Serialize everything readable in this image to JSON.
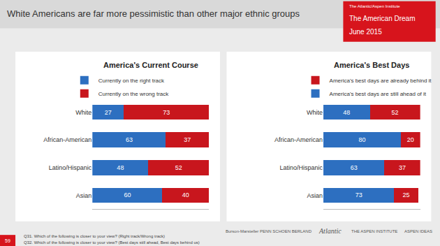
{
  "header": {
    "title": "White Americans are far more pessimistic than other major ethnic groups",
    "badge": [
      "The Atlantic/Aspen Institute",
      "The American Dream",
      "June 2015"
    ]
  },
  "chart_data": [
    {
      "type": "bar",
      "title": "America's Current Course",
      "orientation": "horizontal",
      "stacked": true,
      "data_labels": true,
      "tick_labels": "y",
      "legend": "top",
      "categories": [
        "White",
        "African-American",
        "Latino/Hispanic",
        "Asian"
      ],
      "series": [
        {
          "name": "Currently on the right track",
          "color": "#2d6fc0",
          "values": [
            27,
            63,
            48,
            60
          ]
        },
        {
          "name": "Currently on the wrong track",
          "color": "#c8161d",
          "values": [
            73,
            37,
            52,
            40
          ]
        }
      ],
      "xlim": [
        0,
        100
      ],
      "xticks": []
    },
    {
      "type": "bar",
      "title": "America's Best Days",
      "orientation": "horizontal",
      "stacked": true,
      "data_labels": true,
      "tick_labels": "y",
      "legend": "top",
      "categories": [
        "White",
        "African-American",
        "Latino/Hispanic",
        "Asian"
      ],
      "series": [
        {
          "name": "America's best days are still ahead of it",
          "color": "#2d6fc0",
          "values": [
            48,
            80,
            63,
            73
          ]
        },
        {
          "name": "America's best days are already behind it",
          "color": "#c8161d",
          "values": [
            52,
            20,
            37,
            25
          ]
        }
      ],
      "xlim": [
        0,
        100
      ],
      "xticks": []
    }
  ],
  "footer": {
    "page_number": "59",
    "notes": [
      "Q31. Which of the following is closer to your view? (Right track/Wrong track)",
      "Q32. Which of the following is closer to your view? (Best days still ahead, Best days behind us)"
    ],
    "logos": [
      "Burson-Marsteller",
      "PENN SCHOEN BERLAND",
      "Atlantic",
      "THE ASPEN INSTITUTE",
      "ASPEN IDEAS"
    ]
  }
}
